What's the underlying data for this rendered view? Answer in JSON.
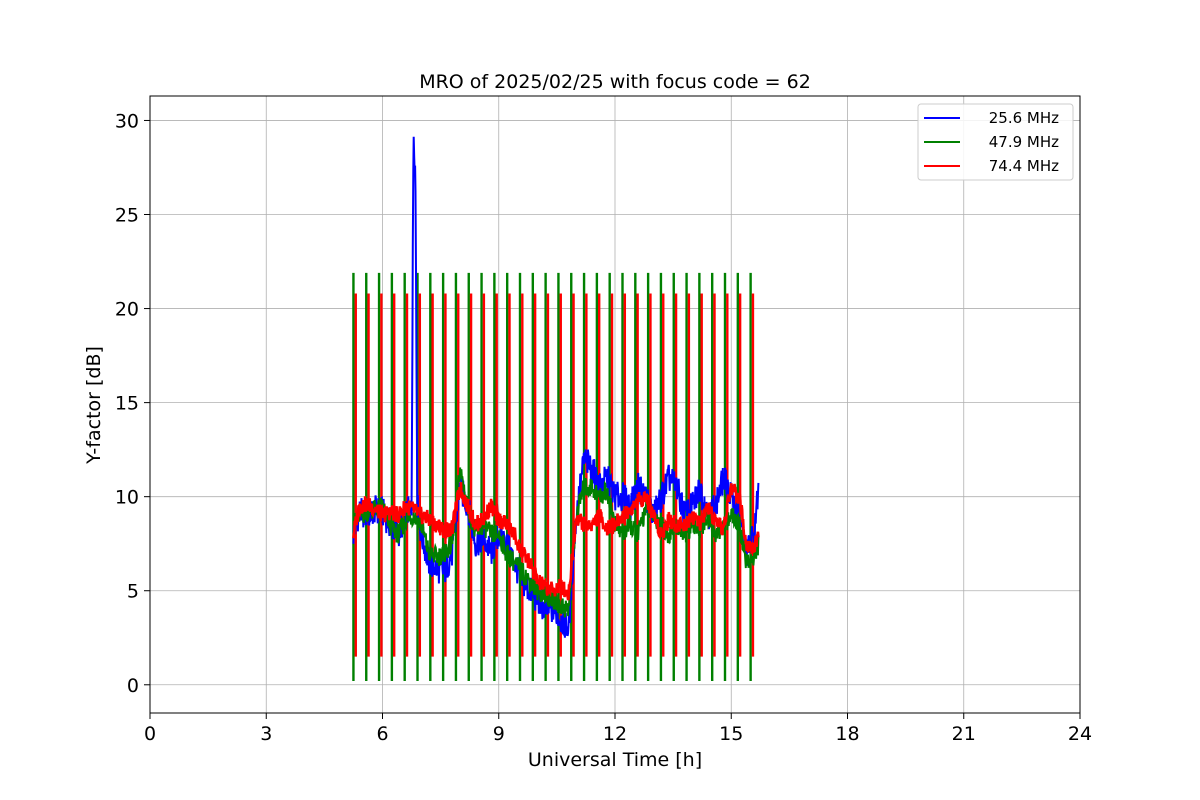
{
  "chart_data": {
    "type": "line",
    "title": "MRO of 2025/02/25 with focus code = 62",
    "xlabel": "Universal Time [h]",
    "ylabel": "Y-factor [dB]",
    "xlim": [
      0,
      24
    ],
    "ylim": [
      -1.5,
      31.3
    ],
    "xticks": [
      0,
      3,
      6,
      9,
      12,
      15,
      18,
      21,
      24
    ],
    "yticks": [
      0,
      5,
      10,
      15,
      20,
      25,
      30
    ],
    "grid": true,
    "legend_position": "top-right",
    "calibration_pulses": {
      "start_h": 5.25,
      "end_h": 15.5,
      "count": 32,
      "peak_values": {
        "green": 21.9,
        "red": 20.8
      },
      "floor_values": {
        "green": 0.2,
        "red": 1.5
      }
    },
    "series": [
      {
        "name": "25.6 MHz",
        "color": "#0000ff",
        "x": [
          5.25,
          5.4,
          5.6,
          5.8,
          6.0,
          6.2,
          6.4,
          6.6,
          6.75,
          6.8,
          6.85,
          6.9,
          7.0,
          7.2,
          7.4,
          7.6,
          7.8,
          8.0,
          8.2,
          8.4,
          8.6,
          8.8,
          9.0,
          9.2,
          9.4,
          9.6,
          9.8,
          10.0,
          10.2,
          10.4,
          10.6,
          10.8,
          11.0,
          11.2,
          11.4,
          11.6,
          11.8,
          12.0,
          12.2,
          12.4,
          12.6,
          12.8,
          13.0,
          13.2,
          13.4,
          13.6,
          13.8,
          14.0,
          14.2,
          14.4,
          14.6,
          14.8,
          15.0,
          15.2,
          15.4,
          15.6,
          15.7
        ],
        "y": [
          8.0,
          9.2,
          9.0,
          9.3,
          9.2,
          8.5,
          8.0,
          9.0,
          9.5,
          29.8,
          27.0,
          9.5,
          8.0,
          6.5,
          6.2,
          6.0,
          7.0,
          10.5,
          9.5,
          7.5,
          7.8,
          7.0,
          8.0,
          7.5,
          6.5,
          5.5,
          5.0,
          4.5,
          4.0,
          4.0,
          3.5,
          3.0,
          9.0,
          12.0,
          11.5,
          10.5,
          11.0,
          10.0,
          10.0,
          9.5,
          10.5,
          10.0,
          9.0,
          10.0,
          11.0,
          10.5,
          9.0,
          9.5,
          10.5,
          9.0,
          9.5,
          11.0,
          10.0,
          9.0,
          7.0,
          8.0,
          10.5
        ]
      },
      {
        "name": "47.9 MHz",
        "color": "#008000",
        "x": [
          5.25,
          5.4,
          5.6,
          5.8,
          6.0,
          6.2,
          6.4,
          6.6,
          6.8,
          7.0,
          7.2,
          7.4,
          7.6,
          7.8,
          8.0,
          8.2,
          8.4,
          8.6,
          8.8,
          9.0,
          9.2,
          9.4,
          9.6,
          9.8,
          10.0,
          10.2,
          10.4,
          10.6,
          10.8,
          11.0,
          11.2,
          11.4,
          11.6,
          11.8,
          12.0,
          12.2,
          12.4,
          12.6,
          12.8,
          13.0,
          13.2,
          13.4,
          13.6,
          13.8,
          14.0,
          14.2,
          14.4,
          14.6,
          14.8,
          15.0,
          15.2,
          15.4,
          15.6,
          15.7
        ],
        "y": [
          8.5,
          9.0,
          9.2,
          9.3,
          9.5,
          8.5,
          8.0,
          8.8,
          9.0,
          8.5,
          7.0,
          6.8,
          7.0,
          7.5,
          11.5,
          9.5,
          8.0,
          8.5,
          8.0,
          8.0,
          7.0,
          6.5,
          6.0,
          5.5,
          5.0,
          4.8,
          4.5,
          4.2,
          4.0,
          9.0,
          10.5,
          10.5,
          10.0,
          10.3,
          8.5,
          8.0,
          8.5,
          8.0,
          9.5,
          9.0,
          8.5,
          8.0,
          8.5,
          8.0,
          8.5,
          8.3,
          9.0,
          8.0,
          8.5,
          9.0,
          8.5,
          6.5,
          6.8,
          7.5
        ]
      },
      {
        "name": "74.4 MHz",
        "color": "#ff0000",
        "x": [
          5.25,
          5.4,
          5.6,
          5.8,
          6.0,
          6.2,
          6.4,
          6.6,
          6.8,
          7.0,
          7.2,
          7.4,
          7.6,
          7.8,
          8.0,
          8.2,
          8.4,
          8.6,
          8.8,
          9.0,
          9.2,
          9.4,
          9.6,
          9.8,
          10.0,
          10.2,
          10.4,
          10.6,
          10.8,
          11.0,
          11.2,
          11.4,
          11.6,
          11.8,
          12.0,
          12.2,
          12.4,
          12.6,
          12.8,
          13.0,
          13.2,
          13.4,
          13.6,
          13.8,
          14.0,
          14.2,
          14.4,
          14.6,
          14.8,
          15.0,
          15.2,
          15.4,
          15.6,
          15.7
        ],
        "y": [
          8.0,
          9.5,
          9.6,
          9.4,
          9.0,
          9.2,
          9.0,
          9.5,
          9.3,
          9.0,
          8.8,
          8.5,
          8.2,
          8.3,
          10.5,
          9.5,
          8.5,
          8.8,
          9.5,
          8.8,
          8.5,
          8.0,
          7.0,
          6.5,
          5.5,
          5.2,
          5.0,
          5.3,
          4.8,
          9.0,
          8.5,
          8.5,
          9.0,
          8.3,
          8.5,
          9.0,
          9.3,
          9.8,
          10.0,
          9.0,
          8.0,
          8.8,
          8.5,
          8.5,
          9.0,
          8.5,
          9.5,
          8.5,
          8.3,
          10.5,
          10.0,
          7.5,
          7.3,
          8.0
        ]
      }
    ]
  }
}
